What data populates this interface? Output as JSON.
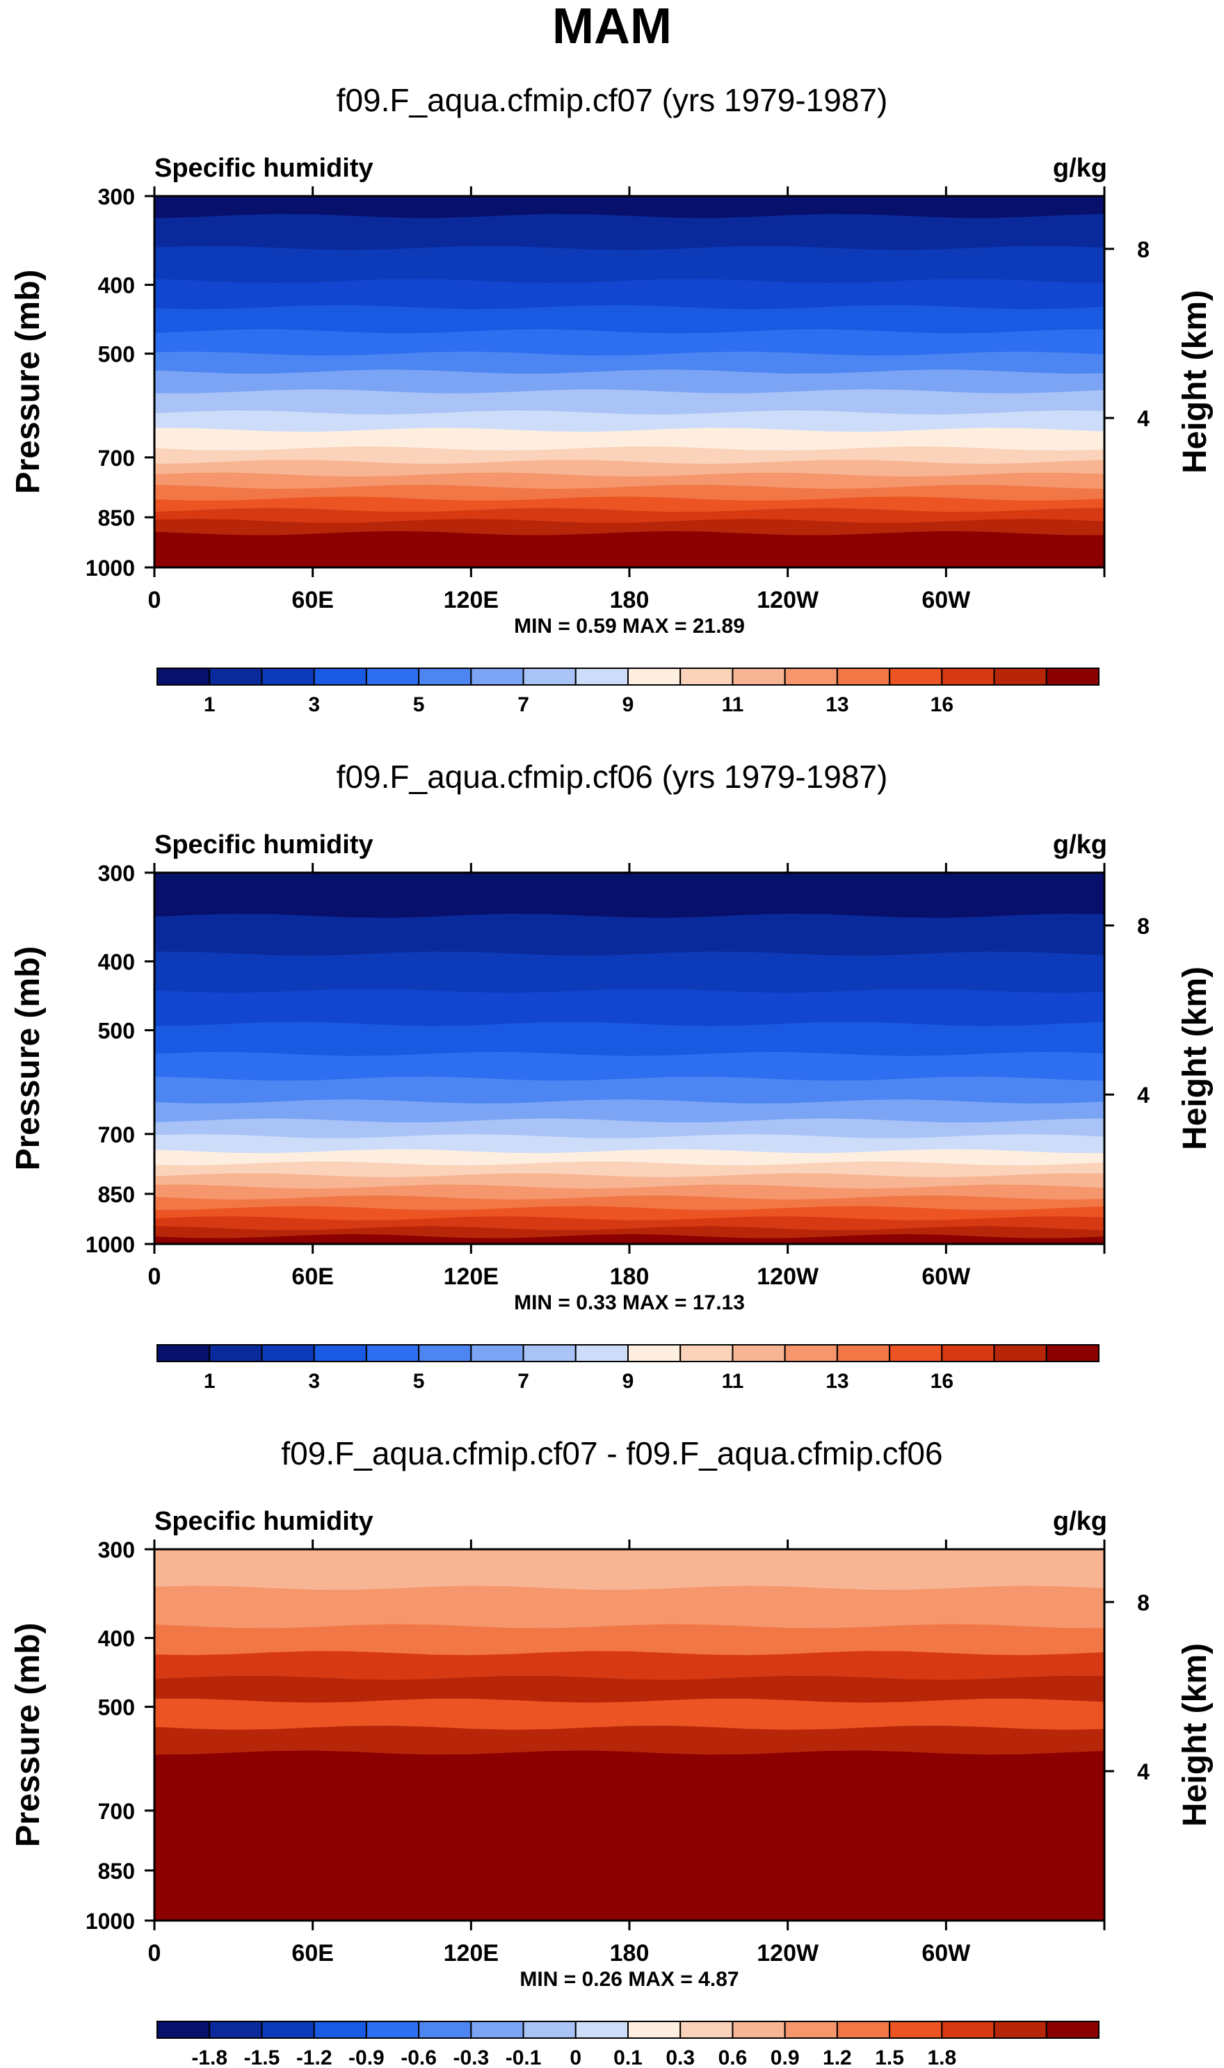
{
  "figure": {
    "title": "MAM"
  },
  "common": {
    "variable": "Specific humidity",
    "units": "g/kg",
    "left_axis_label": "Pressure (mb)",
    "right_axis_label": "Height (km)"
  },
  "chart_data": [
    {
      "type": "heatmap",
      "title": "f09.F_aqua.cfmip.cf07 (yrs 1979-1987)",
      "subtitle_left": "Specific humidity",
      "subtitle_right": "g/kg",
      "ylabel": "Pressure (mb)",
      "ylabel_right": "Height (km)",
      "x_ticks": [
        "0",
        "60E",
        "120E",
        "180",
        "120W",
        "60W"
      ],
      "y_ticks": [
        "300",
        "400",
        "500",
        "700",
        "850",
        "1000"
      ],
      "y_right_ticks": [
        "8",
        "4"
      ],
      "stats": "MIN =   0.59  MAX =  21.89",
      "colorbar_ticks": [
        "1",
        "3",
        "5",
        "7",
        "9",
        "11",
        "13",
        "16"
      ],
      "level_bands": [
        {
          "pressure": 300,
          "color": "#07106b"
        },
        {
          "pressure": 320,
          "color": "#0a2a9c"
        },
        {
          "pressure": 355,
          "color": "#0d3ab8"
        },
        {
          "pressure": 395,
          "color": "#1246d0"
        },
        {
          "pressure": 430,
          "color": "#1a5ae3"
        },
        {
          "pressure": 465,
          "color": "#2d6ff0"
        },
        {
          "pressure": 500,
          "color": "#4d86f2"
        },
        {
          "pressure": 530,
          "color": "#7ba4f5"
        },
        {
          "pressure": 565,
          "color": "#a9c3f7"
        },
        {
          "pressure": 605,
          "color": "#cdddf9"
        },
        {
          "pressure": 640,
          "color": "#fdeee0"
        },
        {
          "pressure": 680,
          "color": "#fbd2ba"
        },
        {
          "pressure": 710,
          "color": "#f8b594"
        },
        {
          "pressure": 740,
          "color": "#f5966c"
        },
        {
          "pressure": 770,
          "color": "#f27747"
        },
        {
          "pressure": 800,
          "color": "#ec5423"
        },
        {
          "pressure": 830,
          "color": "#d73a12"
        },
        {
          "pressure": 860,
          "color": "#b8260a"
        },
        {
          "pressure": 895,
          "color": "#8b0000"
        }
      ]
    },
    {
      "type": "heatmap",
      "title": "f09.F_aqua.cfmip.cf06 (yrs 1979-1987)",
      "subtitle_left": "Specific humidity",
      "subtitle_right": "g/kg",
      "ylabel": "Pressure (mb)",
      "ylabel_right": "Height (km)",
      "x_ticks": [
        "0",
        "60E",
        "120E",
        "180",
        "120W",
        "60W"
      ],
      "y_ticks": [
        "300",
        "400",
        "500",
        "700",
        "850",
        "1000"
      ],
      "y_right_ticks": [
        "8",
        "4"
      ],
      "stats": "MIN =   0.33  MAX =  17.13",
      "colorbar_ticks": [
        "1",
        "3",
        "5",
        "7",
        "9",
        "11",
        "13",
        "16"
      ],
      "level_bands": [
        {
          "pressure": 300,
          "color": "#07106b"
        },
        {
          "pressure": 345,
          "color": "#0a2a9c"
        },
        {
          "pressure": 390,
          "color": "#0d3ab8"
        },
        {
          "pressure": 440,
          "color": "#1246d0"
        },
        {
          "pressure": 490,
          "color": "#1a5ae3"
        },
        {
          "pressure": 540,
          "color": "#2d6ff0"
        },
        {
          "pressure": 585,
          "color": "#4d86f2"
        },
        {
          "pressure": 630,
          "color": "#7ba4f5"
        },
        {
          "pressure": 670,
          "color": "#a9c3f7"
        },
        {
          "pressure": 705,
          "color": "#cdddf9"
        },
        {
          "pressure": 740,
          "color": "#fdeee0"
        },
        {
          "pressure": 770,
          "color": "#fbd2ba"
        },
        {
          "pressure": 800,
          "color": "#f8b594"
        },
        {
          "pressure": 830,
          "color": "#f5966c"
        },
        {
          "pressure": 860,
          "color": "#f27747"
        },
        {
          "pressure": 890,
          "color": "#ec5423"
        },
        {
          "pressure": 920,
          "color": "#d73a12"
        },
        {
          "pressure": 950,
          "color": "#b8260a"
        },
        {
          "pressure": 975,
          "color": "#8b0000"
        }
      ]
    },
    {
      "type": "heatmap",
      "title": "f09.F_aqua.cfmip.cf07 - f09.F_aqua.cfmip.cf06",
      "subtitle_left": "Specific humidity",
      "subtitle_right": "g/kg",
      "ylabel": "Pressure (mb)",
      "ylabel_right": "Height (km)",
      "x_ticks": [
        "0",
        "60E",
        "120E",
        "180",
        "120W",
        "60W"
      ],
      "y_ticks": [
        "300",
        "400",
        "500",
        "700",
        "850",
        "1000"
      ],
      "y_right_ticks": [
        "8",
        "4"
      ],
      "stats": "MIN =   0.26  MAX =   4.87",
      "colorbar_ticks": [
        "-1.8",
        "-1.5",
        "-1.2",
        "-0.9",
        "-0.6",
        "-0.3",
        "-0.1",
        "0",
        "0.1",
        "0.3",
        "0.6",
        "0.9",
        "1.2",
        "1.5",
        "1.8"
      ],
      "level_bands": [
        {
          "pressure": 300,
          "color": "#f8b594"
        },
        {
          "pressure": 340,
          "color": "#f5966c"
        },
        {
          "pressure": 385,
          "color": "#f27747"
        },
        {
          "pressure": 420,
          "color": "#d73a12"
        },
        {
          "pressure": 455,
          "color": "#b8260a"
        },
        {
          "pressure": 490,
          "color": "#ec5423"
        },
        {
          "pressure": 535,
          "color": "#b8260a"
        },
        {
          "pressure": 580,
          "color": "#8b0000"
        }
      ]
    }
  ],
  "colorbar_colors": [
    "#07106b",
    "#0a2a9c",
    "#0d3ab8",
    "#1a5ae3",
    "#2d6ff0",
    "#4d86f2",
    "#7ba4f5",
    "#a9c3f7",
    "#cdddf9",
    "#fdeee0",
    "#fbd2ba",
    "#f8b594",
    "#f5966c",
    "#f27747",
    "#ec5423",
    "#d73a12",
    "#b8260a",
    "#8b0000"
  ]
}
